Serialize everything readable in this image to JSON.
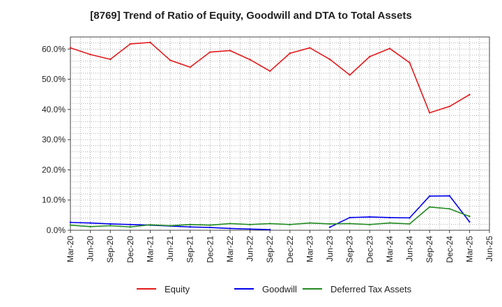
{
  "chart_data": {
    "type": "line",
    "title": "[8769]  Trend of Ratio of Equity, Goodwill and DTA to Total Assets",
    "xlabel": "",
    "ylabel": "",
    "ylim": [
      0,
      64
    ],
    "yticks": [
      "0.0%",
      "10.0%",
      "20.0%",
      "30.0%",
      "40.0%",
      "50.0%",
      "60.0%"
    ],
    "ytick_values": [
      0,
      10,
      20,
      30,
      40,
      50,
      60
    ],
    "x_tick_labels": [
      "Mar-20",
      "Jun-20",
      "Sep-20",
      "Dec-20",
      "Mar-21",
      "Jun-21",
      "Sep-21",
      "Dec-21",
      "Mar-22",
      "Jun-22",
      "Sep-22",
      "Dec-22",
      "Mar-23",
      "Jun-23",
      "Sep-23",
      "Dec-23",
      "Mar-24",
      "Jun-24",
      "Sep-24",
      "Dec-24",
      "Mar-25",
      "Jun-25"
    ],
    "grid": true,
    "legend_position": "bottom",
    "series": [
      {
        "name": "Equity",
        "color": "#e31a1c",
        "values": [
          60.4,
          58.2,
          56.6,
          61.7,
          62.2,
          56.3,
          54.0,
          59.0,
          59.5,
          56.5,
          52.7,
          58.6,
          60.4,
          56.6,
          51.4,
          57.5,
          60.2,
          55.5,
          38.9,
          41.0,
          44.9,
          null
        ]
      },
      {
        "name": "Goodwill",
        "color": "#0000ee",
        "values": [
          2.6,
          2.4,
          2.1,
          1.9,
          1.7,
          1.4,
          1.1,
          0.9,
          0.6,
          0.4,
          0.2,
          null,
          null,
          1.0,
          4.2,
          4.4,
          4.2,
          4.1,
          11.3,
          11.4,
          2.8,
          null
        ]
      },
      {
        "name": "Deferred Tax Assets",
        "color": "#228b22",
        "values": [
          1.7,
          1.2,
          1.5,
          1.1,
          1.8,
          1.5,
          1.9,
          1.7,
          2.2,
          1.9,
          2.2,
          1.9,
          2.4,
          2.1,
          2.2,
          1.9,
          2.4,
          2.1,
          7.7,
          7.1,
          4.6,
          null
        ]
      }
    ]
  }
}
